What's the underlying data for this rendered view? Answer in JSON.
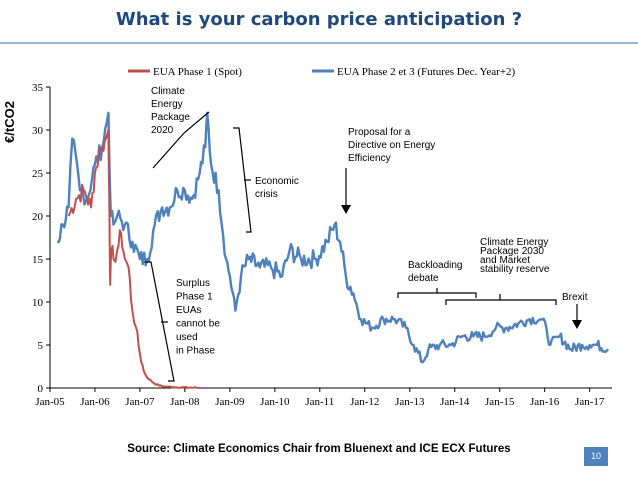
{
  "slide": {
    "title": "What is your carbon price anticipation ?",
    "source": "Source: Climate Economics Chair from Bluenext and ICE ECX Futures",
    "page_number": "10"
  },
  "chart_data": {
    "type": "line",
    "title": "",
    "ylabel": "€/tCO2",
    "xlabel": "",
    "ylim": [
      0,
      35
    ],
    "yticks": [
      0,
      5,
      10,
      15,
      20,
      25,
      30,
      35
    ],
    "xlim": [
      "2005-01-01",
      "2017-07-01"
    ],
    "xtick_labels": [
      "Jan-05",
      "Jan-06",
      "Jan-07",
      "Jan-08",
      "Jan-09",
      "Jan-10",
      "Jan-11",
      "Jan-12",
      "Jan-13",
      "Jan-14",
      "Jan-15",
      "Jan-16",
      "Jan-17"
    ],
    "grid": false,
    "legend_position": "top",
    "series": [
      {
        "name": "EUA Phase 1 (Spot)",
        "color": "#c0504d",
        "points": [
          [
            "2005-06-01",
            20
          ],
          [
            "2005-08-01",
            22
          ],
          [
            "2005-10-01",
            23
          ],
          [
            "2005-12-01",
            21
          ],
          [
            "2006-01-01",
            25
          ],
          [
            "2006-02-01",
            27
          ],
          [
            "2006-03-01",
            28
          ],
          [
            "2006-04-01",
            29
          ],
          [
            "2006-04-20",
            30
          ],
          [
            "2006-04-28",
            21
          ],
          [
            "2006-05-05",
            12
          ],
          [
            "2006-05-15",
            16
          ],
          [
            "2006-06-01",
            15
          ],
          [
            "2006-07-01",
            16
          ],
          [
            "2006-08-01",
            18
          ],
          [
            "2006-09-01",
            15
          ],
          [
            "2006-10-01",
            14
          ],
          [
            "2006-11-01",
            9
          ],
          [
            "2006-12-01",
            7
          ],
          [
            "2007-01-01",
            4
          ],
          [
            "2007-02-01",
            2
          ],
          [
            "2007-03-01",
            1.2
          ],
          [
            "2007-05-01",
            0.5
          ],
          [
            "2007-07-01",
            0.2
          ],
          [
            "2007-10-01",
            0.1
          ],
          [
            "2008-03-01",
            0.05
          ],
          [
            "2008-04-30",
            0.02
          ]
        ]
      },
      {
        "name": "EUA Phase 2 et 3 (Futures Dec. Year+2)",
        "color": "#4f81bd",
        "points": [
          [
            "2005-03-01",
            17
          ],
          [
            "2005-04-15",
            19
          ],
          [
            "2005-06-01",
            21
          ],
          [
            "2005-07-01",
            29
          ],
          [
            "2005-09-01",
            23
          ],
          [
            "2005-11-01",
            22
          ],
          [
            "2006-01-01",
            26
          ],
          [
            "2006-03-01",
            28
          ],
          [
            "2006-04-20",
            32
          ],
          [
            "2006-05-10",
            20
          ],
          [
            "2006-06-01",
            19
          ],
          [
            "2006-07-01",
            20
          ],
          [
            "2006-09-01",
            19
          ],
          [
            "2006-11-01",
            17
          ],
          [
            "2007-01-01",
            15
          ],
          [
            "2007-03-01",
            15
          ],
          [
            "2007-05-01",
            19
          ],
          [
            "2007-07-01",
            21
          ],
          [
            "2007-09-01",
            21
          ],
          [
            "2007-11-01",
            23
          ],
          [
            "2008-01-01",
            23
          ],
          [
            "2008-03-01",
            22
          ],
          [
            "2008-05-01",
            25
          ],
          [
            "2008-06-15",
            28
          ],
          [
            "2008-07-01",
            32
          ],
          [
            "2008-08-01",
            26
          ],
          [
            "2008-10-01",
            23
          ],
          [
            "2008-12-01",
            15
          ],
          [
            "2009-01-01",
            13
          ],
          [
            "2009-02-15",
            9
          ],
          [
            "2009-04-01",
            13
          ],
          [
            "2009-06-01",
            15
          ],
          [
            "2009-09-01",
            14
          ],
          [
            "2009-12-01",
            14
          ],
          [
            "2010-03-01",
            13
          ],
          [
            "2010-05-01",
            16
          ],
          [
            "2010-08-01",
            15
          ],
          [
            "2010-12-01",
            15
          ],
          [
            "2011-03-01",
            17
          ],
          [
            "2011-05-01",
            19
          ],
          [
            "2011-06-15",
            17
          ],
          [
            "2011-08-01",
            13
          ],
          [
            "2011-10-01",
            11
          ],
          [
            "2011-12-01",
            8
          ],
          [
            "2012-03-01",
            7
          ],
          [
            "2012-06-01",
            8
          ],
          [
            "2012-09-01",
            8
          ],
          [
            "2012-12-01",
            7
          ],
          [
            "2013-02-01",
            5
          ],
          [
            "2013-04-15",
            3
          ],
          [
            "2013-06-01",
            4.5
          ],
          [
            "2013-09-01",
            5
          ],
          [
            "2013-12-01",
            5
          ],
          [
            "2014-03-01",
            6
          ],
          [
            "2014-06-01",
            6
          ],
          [
            "2014-09-01",
            6
          ],
          [
            "2014-12-01",
            7
          ],
          [
            "2015-03-01",
            7
          ],
          [
            "2015-06-01",
            7.5
          ],
          [
            "2015-09-01",
            8
          ],
          [
            "2015-12-01",
            8
          ],
          [
            "2016-01-15",
            7
          ],
          [
            "2016-02-15",
            5
          ],
          [
            "2016-05-01",
            6
          ],
          [
            "2016-08-01",
            4.5
          ],
          [
            "2016-11-01",
            5
          ],
          [
            "2017-01-01",
            5
          ],
          [
            "2017-03-01",
            5
          ],
          [
            "2017-06-01",
            4.5
          ]
        ]
      }
    ],
    "annotations": [
      "Climate Energy Package 2020",
      "Economic crisis",
      "Proposal for a Directive on Energy Efficiency",
      "Surplus Phase 1 EUAs cannot be used in Phase 2",
      "Backloading debate",
      "Climate Energy Package 2030 and Market stability reserve",
      "Brexit"
    ]
  }
}
